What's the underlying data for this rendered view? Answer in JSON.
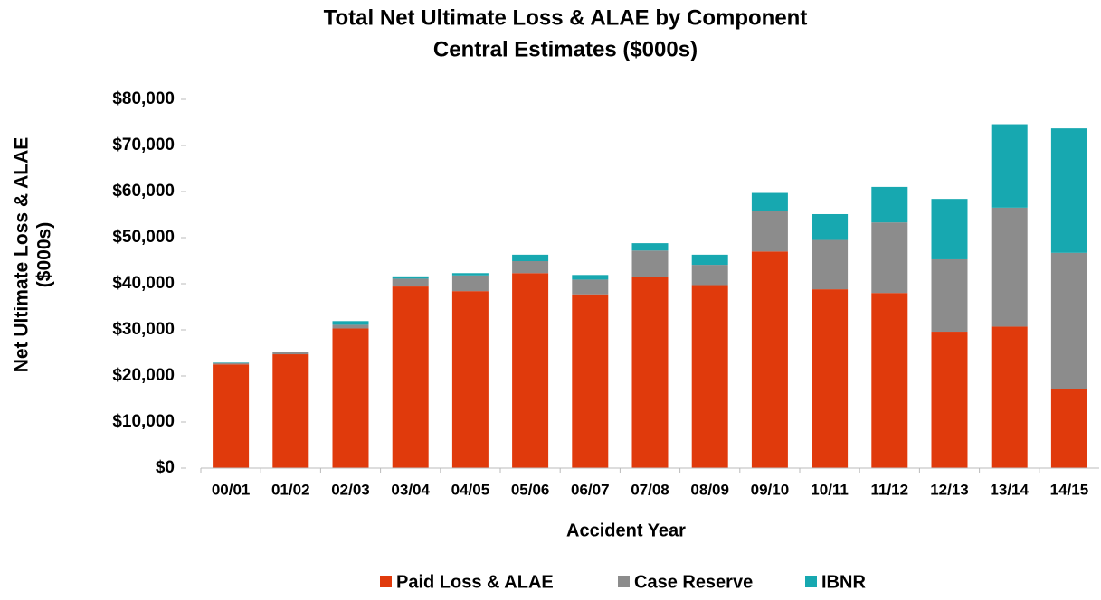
{
  "chart_data": {
    "type": "stacked_bar",
    "title": [
      "Total Net Ultimate Loss & ALAE by Component",
      "Central Estimates ($000s)"
    ],
    "y_label": [
      "Net Ultimate Loss & ALAE",
      "($000s)"
    ],
    "x_label": "Accident Year",
    "categories": [
      "00/01",
      "01/02",
      "02/03",
      "03/04",
      "04/05",
      "05/06",
      "06/07",
      "07/08",
      "08/09",
      "09/10",
      "10/11",
      "11/12",
      "12/13",
      "13/14",
      "14/15"
    ],
    "series": [
      {
        "name": "Paid Loss & ALAE",
        "color": "#e03a0c",
        "values": [
          22500,
          24700,
          30300,
          39400,
          38400,
          42300,
          37700,
          41400,
          39700,
          47000,
          38800,
          38000,
          29600,
          30700,
          17100
        ]
      },
      {
        "name": "Case Reserve",
        "color": "#8c8c8c",
        "values": [
          300,
          400,
          800,
          1700,
          3400,
          2600,
          3200,
          5800,
          4400,
          8700,
          10700,
          15300,
          15700,
          25800,
          29600
        ]
      },
      {
        "name": "IBNR",
        "color": "#17a8b0",
        "values": [
          100,
          100,
          800,
          500,
          500,
          1400,
          1000,
          1600,
          2200,
          4000,
          5600,
          7700,
          13100,
          18100,
          27000
        ]
      }
    ],
    "ylim": [
      0,
      80000
    ],
    "yticks": [
      {
        "value": 0,
        "label": "$0"
      },
      {
        "value": 10000,
        "label": "$10,000"
      },
      {
        "value": 20000,
        "label": "$20,000"
      },
      {
        "value": 30000,
        "label": "$30,000"
      },
      {
        "value": 40000,
        "label": "$40,000"
      },
      {
        "value": 50000,
        "label": "$50,000"
      },
      {
        "value": 60000,
        "label": "$60,000"
      },
      {
        "value": 70000,
        "label": "$70,000"
      },
      {
        "value": 80000,
        "label": "$80,000"
      }
    ],
    "legend": "bottom"
  }
}
